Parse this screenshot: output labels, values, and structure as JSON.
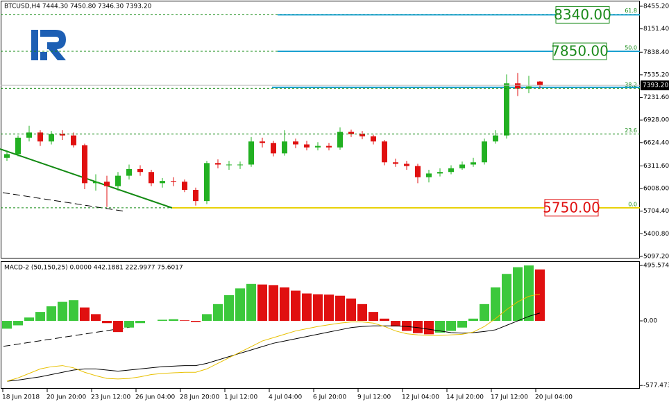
{
  "chart_data": [
    {
      "type": "candlestick",
      "title": "BTCUSD,H4  7444.30 7450.80 7346.30 7393.20",
      "open": [
        6420,
        6470,
        6690,
        6760,
        6640,
        6740,
        6720,
        6590,
        6080,
        6100,
        6040,
        6180,
        6270,
        6230,
        6080,
        6110,
        6100,
        5990,
        5840,
        6350,
        6330,
        6330,
        6330,
        6640,
        6620,
        6480,
        6640,
        6600,
        6560,
        6580,
        6560,
        6770,
        6740,
        6710,
        6640,
        6360,
        6340,
        6310,
        6160,
        6210,
        6230,
        6280,
        6330,
        6360,
        6640,
        6720,
        7420,
        7350,
        7444.3
      ],
      "high": [
        6520,
        6720,
        6850,
        6790,
        6780,
        6790,
        6760,
        6610,
        6200,
        6180,
        6230,
        6330,
        6320,
        6260,
        6150,
        6160,
        6130,
        6020,
        6380,
        6400,
        6380,
        6370,
        6700,
        6690,
        6650,
        6790,
        6680,
        6650,
        6630,
        6620,
        6830,
        6800,
        6780,
        6730,
        6660,
        6410,
        6380,
        6340,
        6260,
        6280,
        6320,
        6370,
        6420,
        6680,
        6790,
        7540,
        7560,
        7520,
        7450.8
      ],
      "low": [
        6380,
        6440,
        6640,
        6580,
        6600,
        6660,
        6560,
        6000,
        5980,
        5760,
        5980,
        6130,
        6180,
        6040,
        6020,
        6040,
        5960,
        5780,
        5800,
        6280,
        6260,
        6270,
        6300,
        6560,
        6440,
        6450,
        6550,
        6520,
        6520,
        6520,
        6530,
        6700,
        6670,
        6600,
        6320,
        6300,
        6260,
        6080,
        6090,
        6170,
        6200,
        6260,
        6300,
        6330,
        6610,
        6680,
        7250,
        7290,
        7346.3
      ],
      "close": [
        6470,
        6690,
        6760,
        6640,
        6740,
        6720,
        6590,
        6080,
        6100,
        6040,
        6180,
        6270,
        6230,
        6080,
        6110,
        6100,
        5990,
        5840,
        6350,
        6330,
        6330,
        6330,
        6640,
        6620,
        6480,
        6640,
        6600,
        6560,
        6580,
        6560,
        6770,
        6740,
        6710,
        6640,
        6360,
        6340,
        6310,
        6160,
        6210,
        6230,
        6280,
        6330,
        6360,
        6640,
        6720,
        7420,
        7350,
        7380,
        7393.2
      ],
      "up_color": "#22b022",
      "down_color": "#e01010",
      "ylim": [
        5078.6,
        8520.3
      ],
      "yticks": [
        {
          "value": 8455.2,
          "label": "8455.20"
        },
        {
          "value": 8151.4,
          "label": "8151.40"
        },
        {
          "value": 7838.4,
          "label": "7838.40"
        },
        {
          "value": 7535.2,
          "label": "7535.20"
        },
        {
          "value": 7231.6,
          "label": "7231.60"
        },
        {
          "value": 6928,
          "label": "6928.00"
        },
        {
          "value": 6624.4,
          "label": "6624.40"
        },
        {
          "value": 6311.6,
          "label": "6311.60"
        },
        {
          "value": 6008,
          "label": "6008.00"
        },
        {
          "value": 5704.4,
          "label": "5704.40"
        },
        {
          "value": 5400.8,
          "label": "5400.80"
        },
        {
          "value": 5097.2,
          "label": "5097.20"
        }
      ],
      "xticks": [
        {
          "value": 0,
          "label": "18 Jun 2018"
        },
        {
          "value": 4,
          "label": "20 Jun 20:00"
        },
        {
          "value": 8,
          "label": "23 Jun 12:00"
        },
        {
          "value": 12,
          "label": "26 Jun 04:00"
        },
        {
          "value": 16,
          "label": "28 Jun 20:00"
        },
        {
          "value": 20,
          "label": "1 Jul 12:00"
        },
        {
          "value": 24,
          "label": "4 Jul 04:00"
        },
        {
          "value": 28,
          "label": "6 Jul 20:00"
        },
        {
          "value": 32,
          "label": "9 Jul 12:00"
        },
        {
          "value": 36,
          "label": "12 Jul 04:00"
        },
        {
          "value": 40,
          "label": "14 Jul 20:00"
        },
        {
          "value": 44,
          "label": "17 Jul 12:00"
        },
        {
          "value": 48,
          "label": "20 Jul 04:00"
        }
      ],
      "fib_levels": [
        {
          "label": "61.8",
          "value": 8346
        },
        {
          "label": "50.0",
          "value": 7850
        },
        {
          "label": "38.2",
          "value": 7354
        },
        {
          "label": "23.6",
          "value": 6741
        },
        {
          "label": "0.0",
          "value": 5750
        }
      ],
      "targets": [
        {
          "value": 8340,
          "label": "8340.00",
          "color": "#1a8a1a",
          "line_color": "#1aa0d0"
        },
        {
          "value": 7850,
          "label": "7850.00",
          "color": "#1a8a1a",
          "line_color": "#1aa0d0"
        },
        {
          "value": 5750,
          "label": "5750.00",
          "color": "#e01010",
          "line_color": "#e8d000"
        }
      ],
      "last_price": {
        "value": 7393.2,
        "label": "7393.20"
      }
    },
    {
      "type": "bar",
      "title": "MACD-2 (50,150,25) 0.0000 442.1881 222.9977 75.6017",
      "values": [
        -70,
        -40,
        30,
        80,
        130,
        170,
        185,
        120,
        60,
        -20,
        -100,
        -60,
        -20,
        0,
        10,
        15,
        5,
        -10,
        60,
        150,
        230,
        290,
        330,
        325,
        320,
        300,
        270,
        245,
        238,
        235,
        225,
        200,
        150,
        80,
        20,
        -50,
        -90,
        -110,
        -120,
        -105,
        -90,
        -60,
        20,
        150,
        300,
        420,
        480,
        495.57,
        460
      ],
      "up_color": "#3cc83c",
      "down_color": "#e01010",
      "lines": [
        {
          "color": "#000000",
          "values": [
            -540,
            -530,
            -515,
            -500,
            -480,
            -460,
            -440,
            -430,
            -430,
            -440,
            -450,
            -440,
            -430,
            -420,
            -410,
            -405,
            -400,
            -400,
            -380,
            -350,
            -320,
            -290,
            -260,
            -230,
            -200,
            -180,
            -160,
            -140,
            -120,
            -100,
            -80,
            -60,
            -50,
            -45,
            -45,
            -45,
            -50,
            -60,
            -75,
            -90,
            -105,
            -110,
            -105,
            -95,
            -80,
            -40,
            0,
            40,
            70
          ]
        },
        {
          "color": "#e8c000",
          "values": [
            -540,
            -510,
            -470,
            -430,
            -410,
            -400,
            -420,
            -460,
            -490,
            -515,
            -520,
            -515,
            -500,
            -480,
            -470,
            -465,
            -460,
            -460,
            -430,
            -380,
            -330,
            -280,
            -230,
            -180,
            -150,
            -120,
            -90,
            -70,
            -50,
            -35,
            -20,
            -10,
            -10,
            -20,
            -50,
            -90,
            -115,
            -125,
            -130,
            -130,
            -125,
            -120,
            -100,
            -50,
            20,
            100,
            170,
            220,
            240
          ]
        }
      ],
      "ylim": [
        -601,
        527
      ],
      "yticks": [
        495.5748,
        {
          "value": 0,
          "label": "0.00"
        },
        -577.4735
      ]
    }
  ]
}
